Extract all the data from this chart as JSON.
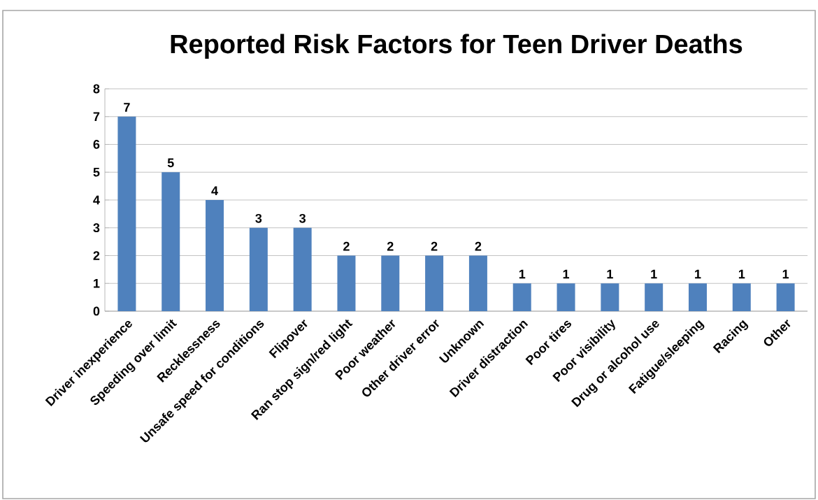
{
  "chart_data": {
    "type": "bar",
    "title": "Reported Risk Factors for Teen Driver Deaths",
    "categories": [
      "Driver inexperience",
      "Speeding over limit",
      "Recklessness",
      "Unsafe speed for conditions",
      "Flipover",
      "Ran stop sign/red light",
      "Poor weather",
      "Other driver error",
      "Unknown",
      "Driver distraction",
      "Poor tires",
      "Poor visibility",
      "Drug or alcohol use",
      "Fatigue/sleeping",
      "Racing",
      "Other"
    ],
    "values": [
      7,
      5,
      4,
      3,
      3,
      2,
      2,
      2,
      2,
      1,
      1,
      1,
      1,
      1,
      1,
      1
    ],
    "color": "#4f81bd",
    "ylim": [
      0,
      8
    ],
    "yticks": [
      0,
      1,
      2,
      3,
      4,
      5,
      6,
      7,
      8
    ],
    "grid": "y",
    "data_labels": true
  }
}
